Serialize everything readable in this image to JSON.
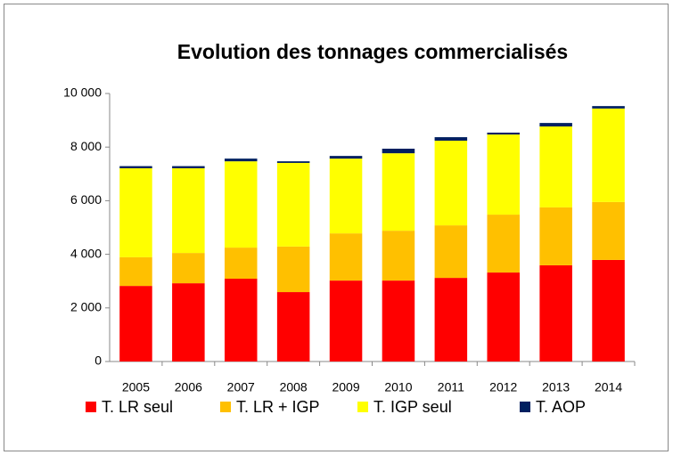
{
  "chart_data": {
    "type": "stacked_bar",
    "title": "Evolution des tonnages commercialisés",
    "categories": [
      "2005",
      "2006",
      "2007",
      "2008",
      "2009",
      "2010",
      "2011",
      "2012",
      "2013",
      "2014"
    ],
    "series": [
      {
        "name": "T. LR seul",
        "color": "#ff0000",
        "values": [
          2820,
          2920,
          3090,
          2590,
          3020,
          3020,
          3120,
          3320,
          3590,
          3790
        ]
      },
      {
        "name": "T. LR + IGP",
        "color": "#ffc000",
        "values": [
          1070,
          1130,
          1160,
          1700,
          1760,
          1860,
          1960,
          2160,
          2160,
          2160
        ]
      },
      {
        "name": "T. IGP seul",
        "color": "#ffff00",
        "values": [
          3320,
          3160,
          3220,
          3120,
          2790,
          2890,
          3160,
          2990,
          3020,
          3490
        ]
      },
      {
        "name": "T.  AOP",
        "color": "#002060",
        "values": [
          80,
          80,
          100,
          60,
          100,
          170,
          130,
          70,
          130,
          90
        ]
      }
    ],
    "ylim": [
      0,
      10000
    ],
    "yticks": [
      0,
      {
        "value": 2000,
        "label": "2 000"
      },
      {
        "value": 4000,
        "label": "4 000"
      },
      {
        "value": 6000,
        "label": "6 000"
      },
      {
        "value": 8000,
        "label": "8 000"
      },
      {
        "value": 10000,
        "label": "10 000"
      }
    ],
    "legend": "bottom"
  }
}
